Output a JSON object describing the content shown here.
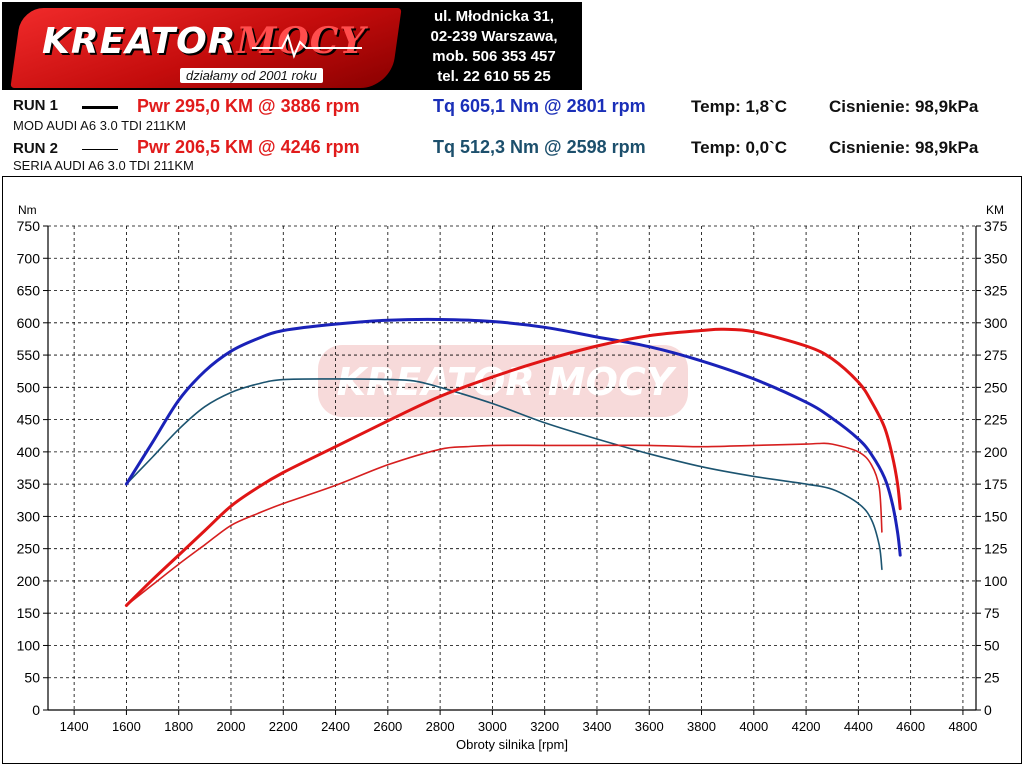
{
  "header": {
    "logo_text": "KREATOR MOCY",
    "logo_main": "KREATOR",
    "logo_accent": "MOCY",
    "tagline": "działamy od 2001 roku",
    "address": [
      "ul. Młodnicka 31,",
      "02-239 Warszawa,",
      "mob. 506 353 457",
      "tel. 22 610 55 25"
    ]
  },
  "runs": [
    {
      "label": "RUN 1",
      "pwr": "Pwr 295,0 KM @ 3886 rpm",
      "tq": "Tq 605,1 Nm @ 2801 rpm",
      "temp": "Temp: 1,8`C",
      "pressure": "Cisnienie: 98,9kPa",
      "description": "MOD AUDI A6 3.0 TDI 211KM"
    },
    {
      "label": "RUN 2",
      "pwr": "Pwr 206,5 KM @ 4246 rpm",
      "tq": "Tq 512,3 Nm @ 2598 rpm",
      "temp": "Temp: 0,0`C",
      "pressure": "Cisnienie: 98,9kPa",
      "description": "SERIA AUDI A6 3.0 TDI 211KM"
    }
  ],
  "colors": {
    "run1_power": "#e01515",
    "run1_torque": "#1a22b8",
    "run2_power": "#d61f1f",
    "run2_torque": "#1c5470",
    "grid": "#000000"
  },
  "chart_data": {
    "type": "line",
    "xlabel": "Obroty silnika [rpm]",
    "ylabel_left": "Nm",
    "ylabel_right": "KM",
    "xlim": [
      1300,
      4850
    ],
    "ylim_left": [
      0,
      750
    ],
    "ylim_right": [
      0,
      375
    ],
    "x_ticks": [
      1400,
      1600,
      1800,
      2000,
      2200,
      2400,
      2600,
      2800,
      3000,
      3200,
      3400,
      3600,
      3800,
      4000,
      4200,
      4400,
      4600,
      4800
    ],
    "y_ticks_left": [
      0,
      50,
      100,
      150,
      200,
      250,
      300,
      350,
      400,
      450,
      500,
      550,
      600,
      650,
      700,
      750
    ],
    "y_ticks_right": [
      0,
      25,
      50,
      75,
      100,
      125,
      150,
      175,
      200,
      225,
      250,
      275,
      300,
      325,
      350,
      375
    ],
    "grid": true,
    "series": [
      {
        "name": "RUN 1 Tq",
        "axis": "left",
        "color": "#1a22b8",
        "width": 3,
        "x": [
          1600,
          1700,
          1800,
          1900,
          2000,
          2100,
          2200,
          2400,
          2600,
          2801,
          3000,
          3200,
          3400,
          3600,
          3800,
          4000,
          4200,
          4300,
          4400,
          4450,
          4500,
          4530,
          4550,
          4560
        ],
        "y": [
          350,
          415,
          480,
          525,
          556,
          575,
          588,
          598,
          604,
          605.1,
          602,
          593,
          578,
          563,
          541,
          513,
          477,
          452,
          420,
          396,
          360,
          320,
          275,
          240
        ]
      },
      {
        "name": "RUN 2 Tq",
        "axis": "left",
        "color": "#1c5470",
        "width": 1.6,
        "x": [
          1600,
          1700,
          1800,
          1900,
          2000,
          2100,
          2200,
          2400,
          2598,
          2700,
          2800,
          3000,
          3200,
          3400,
          3600,
          3800,
          4000,
          4200,
          4300,
          4400,
          4450,
          4480,
          4490
        ],
        "y": [
          350,
          392,
          435,
          470,
          492,
          505,
          512,
          513,
          512.3,
          510,
          500,
          475,
          445,
          420,
          397,
          377,
          362,
          350,
          342,
          320,
          295,
          255,
          218
        ]
      },
      {
        "name": "RUN 1 Pwr",
        "axis": "right",
        "color": "#e01515",
        "width": 3,
        "x": [
          1600,
          1700,
          1800,
          1900,
          2000,
          2100,
          2200,
          2400,
          2600,
          2800,
          3000,
          3200,
          3400,
          3600,
          3800,
          3886,
          4000,
          4200,
          4300,
          4400,
          4450,
          4500,
          4530,
          4550,
          4560
        ],
        "y": [
          81,
          101,
          120,
          139,
          158,
          172,
          184,
          204,
          224,
          243,
          258,
          271,
          282,
          290,
          294,
          295,
          293,
          282,
          272,
          254,
          239,
          219,
          197,
          175,
          156
        ]
      },
      {
        "name": "RUN 2 Pwr",
        "axis": "right",
        "color": "#d61f1f",
        "width": 1.6,
        "x": [
          1600,
          1700,
          1800,
          1900,
          2000,
          2100,
          2200,
          2400,
          2600,
          2800,
          2900,
          3000,
          3200,
          3400,
          3600,
          3800,
          4000,
          4200,
          4246,
          4300,
          4400,
          4450,
          4480,
          4490
        ],
        "y": [
          81,
          97,
          113,
          128,
          143,
          152,
          160,
          174,
          190,
          202,
          204,
          205,
          205,
          205,
          205,
          204,
          205,
          206,
          206.5,
          206,
          200,
          190,
          172,
          138
        ]
      }
    ]
  }
}
